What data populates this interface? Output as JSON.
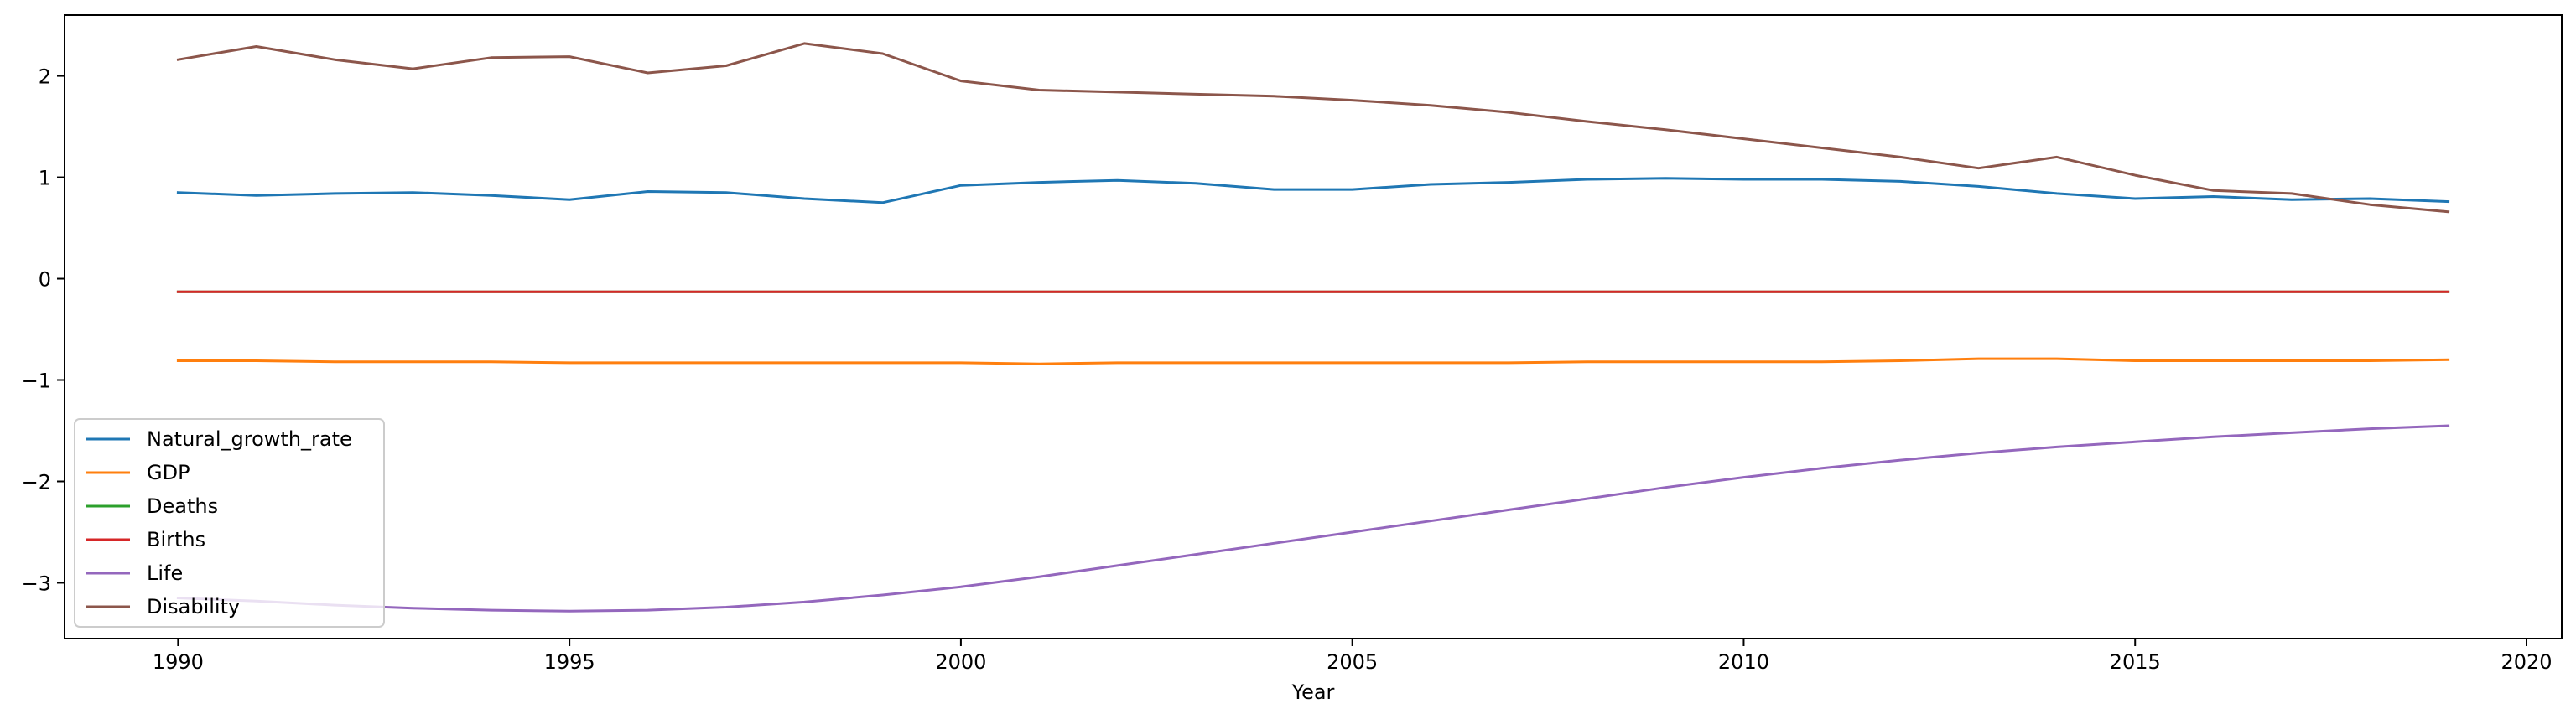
{
  "chart_data": {
    "type": "line",
    "title": "",
    "xlabel": "Year",
    "ylabel": "",
    "xlim": [
      1988.55,
      2020.45
    ],
    "ylim": [
      -3.55,
      2.6
    ],
    "xticks": [
      1990,
      1995,
      2000,
      2005,
      2010,
      2015,
      2020
    ],
    "yticks": [
      -3,
      -2,
      -1,
      0,
      1,
      2
    ],
    "ytick_labels": [
      "−3",
      "−2",
      "−1",
      "0",
      "1",
      "2"
    ],
    "grid": false,
    "legend": "lower-left",
    "x": [
      1990,
      1991,
      1992,
      1993,
      1994,
      1995,
      1996,
      1997,
      1998,
      1999,
      2000,
      2001,
      2002,
      2003,
      2004,
      2005,
      2006,
      2007,
      2008,
      2009,
      2010,
      2011,
      2012,
      2013,
      2014,
      2015,
      2016,
      2017,
      2018,
      2019
    ],
    "series": [
      {
        "name": "Natural_growth_rate",
        "color": "#1f77b4",
        "values": [
          0.85,
          0.82,
          0.84,
          0.85,
          0.82,
          0.78,
          0.86,
          0.85,
          0.79,
          0.75,
          0.92,
          0.95,
          0.97,
          0.94,
          0.88,
          0.88,
          0.93,
          0.95,
          0.98,
          0.99,
          0.98,
          0.98,
          0.96,
          0.91,
          0.84,
          0.79,
          0.81,
          0.78,
          0.79,
          0.76
        ]
      },
      {
        "name": "GDP",
        "color": "#ff7f0e",
        "values": [
          -0.81,
          -0.81,
          -0.82,
          -0.82,
          -0.82,
          -0.83,
          -0.83,
          -0.83,
          -0.83,
          -0.83,
          -0.83,
          -0.84,
          -0.83,
          -0.83,
          -0.83,
          -0.83,
          -0.83,
          -0.83,
          -0.82,
          -0.82,
          -0.82,
          -0.82,
          -0.81,
          -0.79,
          -0.79,
          -0.81,
          -0.81,
          -0.81,
          -0.81,
          -0.8
        ]
      },
      {
        "name": "Deaths",
        "color": "#2ca02c",
        "values": [
          -0.13,
          -0.13,
          -0.13,
          -0.13,
          -0.13,
          -0.13,
          -0.13,
          -0.13,
          -0.13,
          -0.13,
          -0.13,
          -0.13,
          -0.13,
          -0.13,
          -0.13,
          -0.13,
          -0.13,
          -0.13,
          -0.13,
          -0.13,
          -0.13,
          -0.13,
          -0.13,
          -0.13,
          -0.13,
          -0.13,
          -0.13,
          -0.13,
          -0.13,
          -0.13
        ]
      },
      {
        "name": "Births",
        "color": "#d62728",
        "values": [
          -0.13,
          -0.13,
          -0.13,
          -0.13,
          -0.13,
          -0.13,
          -0.13,
          -0.13,
          -0.13,
          -0.13,
          -0.13,
          -0.13,
          -0.13,
          -0.13,
          -0.13,
          -0.13,
          -0.13,
          -0.13,
          -0.13,
          -0.13,
          -0.13,
          -0.13,
          -0.13,
          -0.13,
          -0.13,
          -0.13,
          -0.13,
          -0.13,
          -0.13,
          -0.13
        ]
      },
      {
        "name": "Life",
        "color": "#9467bd",
        "values": [
          -3.15,
          -3.18,
          -3.22,
          -3.25,
          -3.27,
          -3.28,
          -3.27,
          -3.24,
          -3.19,
          -3.12,
          -3.04,
          -2.94,
          -2.83,
          -2.72,
          -2.61,
          -2.5,
          -2.39,
          -2.28,
          -2.17,
          -2.06,
          -1.96,
          -1.87,
          -1.79,
          -1.72,
          -1.66,
          -1.61,
          -1.56,
          -1.52,
          -1.48,
          -1.45
        ]
      },
      {
        "name": "Disability",
        "color": "#8c564b",
        "values": [
          2.16,
          2.29,
          2.16,
          2.07,
          2.18,
          2.19,
          2.03,
          2.1,
          2.32,
          2.22,
          1.95,
          1.86,
          1.84,
          1.82,
          1.8,
          1.76,
          1.71,
          1.64,
          1.55,
          1.47,
          1.38,
          1.29,
          1.2,
          1.09,
          1.2,
          1.02,
          0.87,
          0.84,
          0.73,
          0.66
        ]
      }
    ]
  }
}
